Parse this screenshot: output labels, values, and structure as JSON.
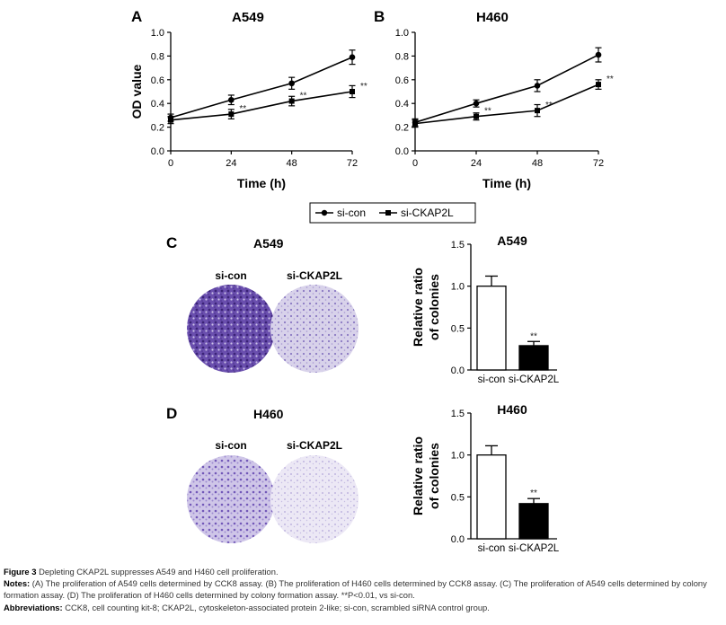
{
  "colors": {
    "line": "#000000",
    "bar_control": "#ffffff",
    "bar_knockdown": "#000000",
    "plate_control": "#5b3d9c",
    "plate_knockdown": "#a89cc9"
  },
  "panels": {
    "A": {
      "letter": "A",
      "title": "A549"
    },
    "B": {
      "letter": "B",
      "title": "H460"
    },
    "C": {
      "letter": "C",
      "title": "A549",
      "left_label": "si-con",
      "right_label": "si-CKAP2L",
      "chart_title": "A549"
    },
    "D": {
      "letter": "D",
      "title": "H460",
      "left_label": "si-con",
      "right_label": "si-CKAP2L",
      "chart_title": "H460"
    }
  },
  "legend": {
    "items": [
      "si-con",
      "si-CKAP2L"
    ]
  },
  "icons": [
    "circle-marker-icon",
    "square-marker-icon",
    "colony-plate-icon"
  ],
  "chart_data": [
    {
      "panel": "A",
      "type": "line",
      "title": "A549",
      "xlabel": "Time (h)",
      "ylabel": "OD value",
      "x": [
        0,
        24,
        48,
        72
      ],
      "xlim": [
        0,
        72
      ],
      "ylim": [
        0.0,
        1.0
      ],
      "xticks": [
        "0",
        "24",
        "48",
        "72"
      ],
      "yticks": [
        "0.0",
        "0.2",
        "0.4",
        "0.6",
        "0.8",
        "1.0"
      ],
      "series": [
        {
          "name": "si-con",
          "marker": "circle",
          "values": [
            0.28,
            0.43,
            0.57,
            0.79
          ],
          "err": [
            0.03,
            0.04,
            0.05,
            0.06
          ]
        },
        {
          "name": "si-CKAP2L",
          "marker": "square",
          "values": [
            0.26,
            0.31,
            0.42,
            0.5
          ],
          "err": [
            0.03,
            0.04,
            0.04,
            0.05
          ],
          "annotations": [
            "",
            "**",
            "**",
            "**"
          ]
        }
      ]
    },
    {
      "panel": "B",
      "type": "line",
      "title": "H460",
      "xlabel": "Time (h)",
      "ylabel": "",
      "x": [
        0,
        24,
        48,
        72
      ],
      "xlim": [
        0,
        72
      ],
      "ylim": [
        0.0,
        1.0
      ],
      "xticks": [
        "0",
        "24",
        "48",
        "72"
      ],
      "yticks": [
        "0.0",
        "0.2",
        "0.4",
        "0.6",
        "0.8",
        "1.0"
      ],
      "series": [
        {
          "name": "si-con",
          "marker": "circle",
          "values": [
            0.24,
            0.4,
            0.55,
            0.81
          ],
          "err": [
            0.03,
            0.03,
            0.05,
            0.06
          ]
        },
        {
          "name": "si-CKAP2L",
          "marker": "square",
          "values": [
            0.23,
            0.29,
            0.34,
            0.56
          ],
          "err": [
            0.03,
            0.03,
            0.05,
            0.04
          ],
          "annotations": [
            "",
            "**",
            "**",
            "**"
          ]
        }
      ]
    },
    {
      "panel": "C",
      "type": "bar",
      "title": "A549",
      "ylabel": "Relative ratio of colonies",
      "ylabel_lines": [
        "Relative ratio",
        "of colonies"
      ],
      "categories": [
        "si-con",
        "si-CKAP2L"
      ],
      "values": [
        1.0,
        0.29
      ],
      "err": [
        0.12,
        0.05
      ],
      "annotations": [
        "",
        "**"
      ],
      "ylim": [
        0.0,
        1.5
      ],
      "yticks": [
        "0.0",
        "0.5",
        "1.0",
        "1.5"
      ]
    },
    {
      "panel": "D",
      "type": "bar",
      "title": "H460",
      "ylabel": "Relative ratio of colonies",
      "ylabel_lines": [
        "Relative ratio",
        "of colonies"
      ],
      "categories": [
        "si-con",
        "si-CKAP2L"
      ],
      "values": [
        1.0,
        0.42
      ],
      "err": [
        0.11,
        0.06
      ],
      "annotations": [
        "",
        "**"
      ],
      "ylim": [
        0.0,
        1.5
      ],
      "yticks": [
        "0.0",
        "0.5",
        "1.0",
        "1.5"
      ]
    }
  ],
  "caption": {
    "figure_label": "Figure 3",
    "figure_text": " Depleting CKAP2L suppresses A549 and H460 cell proliferation.",
    "notes_label": "Notes:",
    "notes_text": " (A) The proliferation of A549 cells determined by CCK8 assay. (B) The proliferation of H460 cells determined by CCK8 assay. (C) The proliferation of A549 cells determined by colony formation assay. (D) The proliferation of H460 cells determined by colony formation assay. **P<0.01, vs si-con.",
    "abbrev_label": "Abbreviations:",
    "abbrev_text": " CCK8, cell counting kit-8; CKAP2L, cytoskeleton-associated protein 2-like; si-con, scrambled siRNA control group."
  }
}
